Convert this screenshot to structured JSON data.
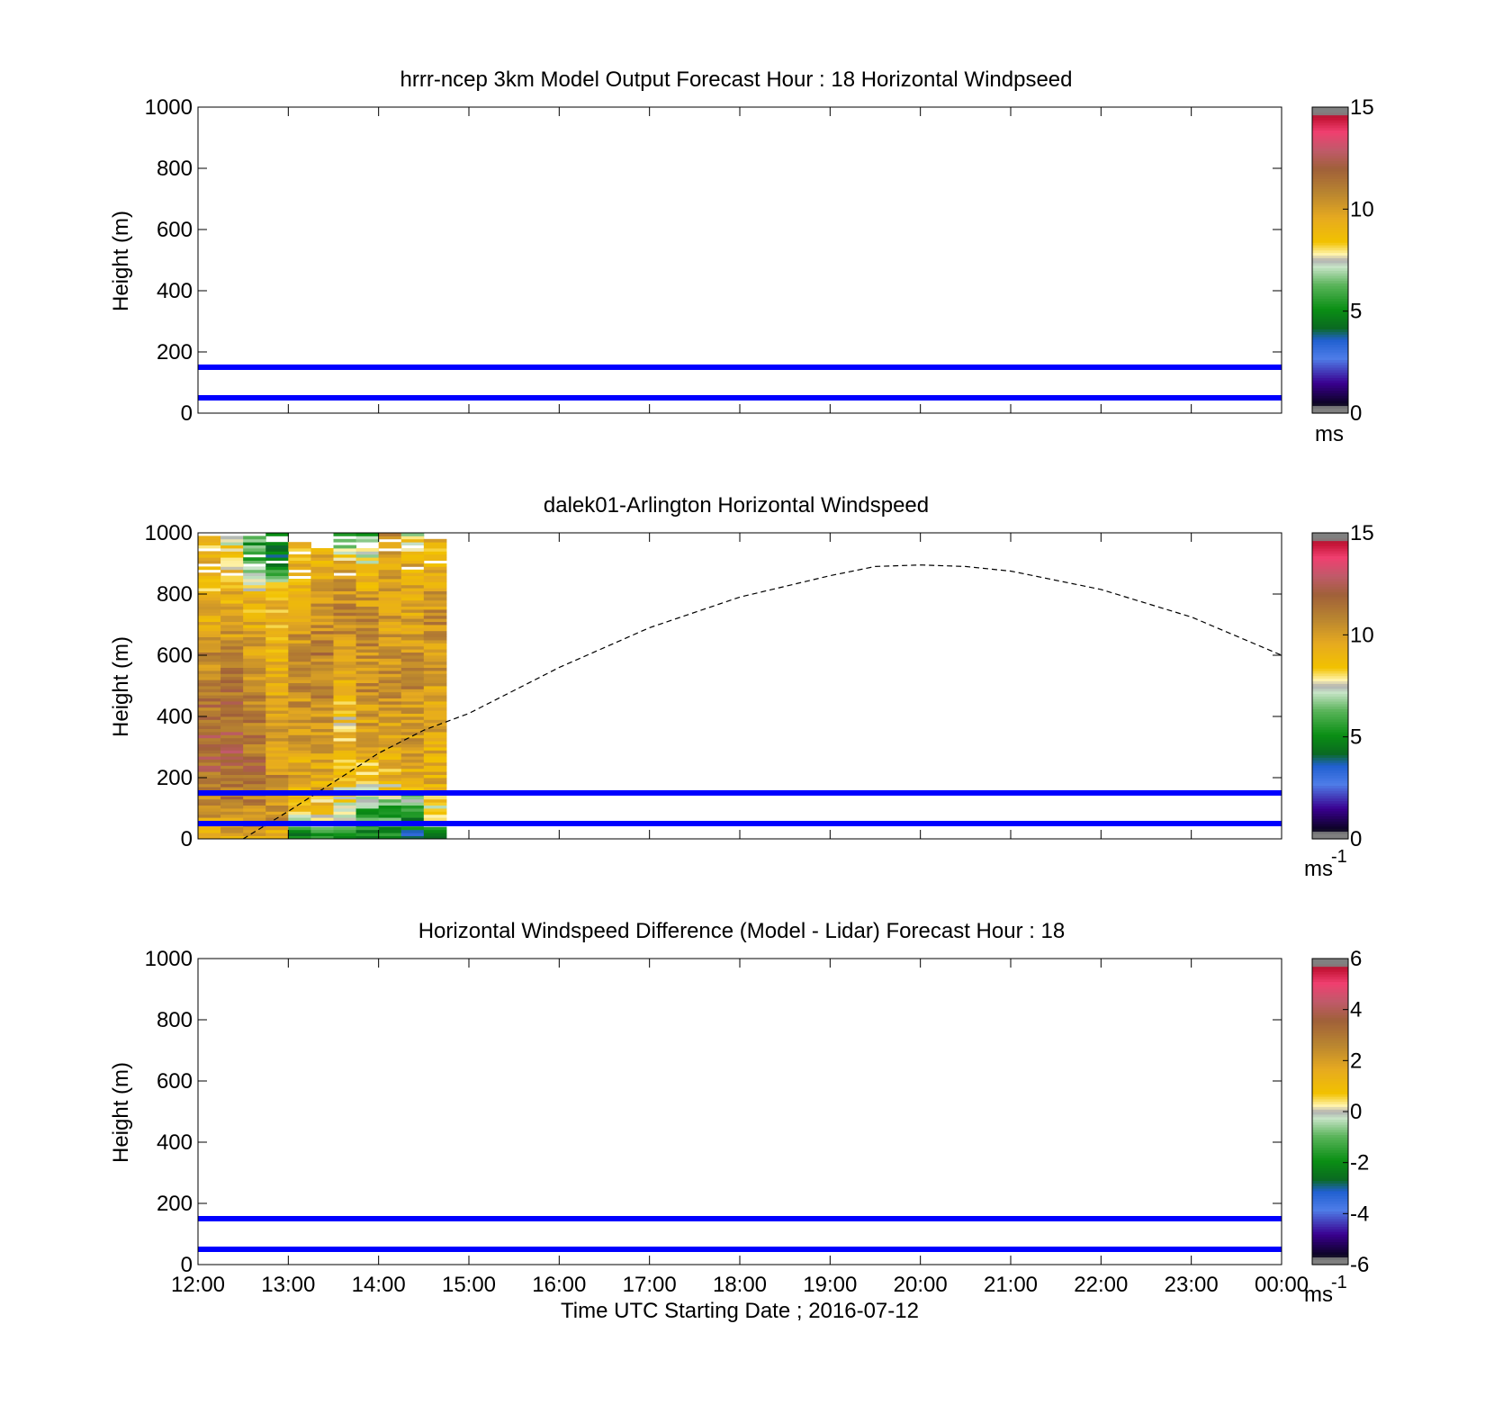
{
  "figure": {
    "x_tick_labels": [
      "12:00",
      "13:00",
      "14:00",
      "15:00",
      "16:00",
      "17:00",
      "18:00",
      "19:00",
      "20:00",
      "21:00",
      "22:00",
      "23:00",
      "00:00"
    ],
    "xlabel": "Time UTC  Starting Date ; 2016-07-12",
    "reference_line_color": "#0000ff",
    "dashed_line_color": "#000000"
  },
  "panels": [
    {
      "title": "hrrr-ncep 3km Model Output   Forecast Hour : 18 Horizontal Windpseed",
      "ylabel": "Height (m)",
      "y_tick_labels": [
        "0",
        "200",
        "400",
        "600",
        "800",
        "1000"
      ],
      "colorbar": {
        "tick_labels": [
          "0",
          "5",
          "10",
          "15"
        ],
        "unit": "ms",
        "unit_sup": ""
      }
    },
    {
      "title": "dalek01-Arlington  Horizontal Windspeed",
      "ylabel": "Height (m)",
      "y_tick_labels": [
        "0",
        "200",
        "400",
        "600",
        "800",
        "1000"
      ],
      "colorbar": {
        "tick_labels": [
          "0",
          "5",
          "10",
          "15"
        ],
        "unit": "ms",
        "unit_sup": "-1"
      }
    },
    {
      "title": "Horizontal Windspeed Difference (Model - Lidar) Forecast Hour : 18",
      "ylabel": "Height (m)",
      "y_tick_labels": [
        "0",
        "200",
        "400",
        "600",
        "800",
        "1000"
      ],
      "colorbar": {
        "tick_labels": [
          "-6",
          "-4",
          "-2",
          "0",
          "2",
          "4",
          "6"
        ],
        "unit": "ms",
        "unit_sup": "-1"
      }
    }
  ],
  "chart_data": [
    {
      "type": "heatmap",
      "title": "hrrr-ncep 3km Model Output   Forecast Hour : 18 Horizontal Windpseed",
      "ylabel": "Height (m)",
      "x_range": [
        "12:00",
        "00:00"
      ],
      "ylim": [
        0,
        1000
      ],
      "reference_lines_y": [
        50,
        150
      ],
      "colorbar_range": [
        0,
        15
      ],
      "colorbar_unit": "ms",
      "cells": []
    },
    {
      "type": "heatmap",
      "title": "dalek01-Arlington  Horizontal Windspeed",
      "ylabel": "Height (m)",
      "x_range": [
        "12:00",
        "00:00"
      ],
      "ylim": [
        0,
        1000
      ],
      "reference_lines_y": [
        50,
        150
      ],
      "colorbar_range": [
        0,
        15
      ],
      "colorbar_unit": "ms-1",
      "time_columns_h": [
        12.0,
        12.25,
        12.5,
        12.75,
        13.0,
        13.25,
        13.5,
        13.75,
        14.0,
        14.25,
        14.5
      ],
      "column_top_m": [
        1000,
        1000,
        1000,
        1000,
        970,
        950,
        1000,
        1000,
        1000,
        1000,
        980
      ],
      "speed_profile_by_height": {
        "heights_m": [
          10,
          50,
          100,
          150,
          200,
          300,
          400,
          500,
          600,
          700,
          800,
          900,
          1000
        ],
        "columns": [
          [
            9.5,
            9.8,
            10.5,
            11.0,
            11.5,
            11.8,
            11.5,
            11.0,
            10.5,
            9.5,
            9.0,
            9.0,
            8.5
          ],
          [
            9.8,
            10.0,
            11.0,
            11.5,
            11.8,
            12.0,
            11.8,
            11.2,
            10.5,
            9.8,
            9.2,
            8.5,
            7.5
          ],
          [
            9.8,
            10.2,
            10.8,
            11.2,
            11.5,
            11.2,
            11.0,
            10.5,
            10.0,
            9.5,
            8.8,
            6.5,
            5.5
          ],
          [
            9.5,
            10.0,
            10.5,
            10.8,
            10.5,
            10.0,
            9.8,
            9.5,
            9.5,
            9.2,
            8.8,
            5.0,
            4.5
          ],
          [
            5.0,
            7.5,
            9.0,
            9.5,
            9.5,
            9.8,
            10.2,
            10.5,
            10.5,
            10.0,
            9.5,
            9.0,
            9.0
          ],
          [
            5.0,
            7.0,
            8.5,
            9.2,
            9.5,
            10.0,
            10.5,
            10.8,
            11.0,
            10.5,
            10.0,
            9.5,
            9.5
          ],
          [
            4.5,
            6.5,
            7.5,
            8.0,
            8.5,
            9.0,
            8.5,
            9.5,
            10.0,
            10.5,
            10.5,
            9.5,
            5.0
          ],
          [
            5.0,
            5.5,
            6.0,
            7.5,
            8.5,
            9.5,
            10.0,
            10.5,
            10.5,
            10.5,
            10.0,
            8.0,
            6.0
          ],
          [
            5.5,
            5.5,
            6.0,
            7.5,
            9.0,
            9.5,
            10.0,
            10.5,
            10.5,
            10.0,
            10.0,
            9.5,
            11.0
          ],
          [
            4.0,
            5.0,
            6.0,
            7.0,
            9.5,
            10.0,
            10.2,
            10.5,
            10.2,
            10.0,
            9.5,
            9.5,
            7.5
          ],
          [
            5.0,
            6.5,
            8.0,
            9.0,
            9.5,
            9.5,
            9.8,
            10.0,
            10.2,
            10.5,
            10.2,
            9.0,
            9.0
          ]
        ]
      },
      "dashed_curve": {
        "x_h": [
          12.5,
          13.0,
          13.5,
          14.0,
          14.5,
          15.0,
          16.0,
          17.0,
          18.0,
          19.0,
          19.5,
          20.0,
          20.5,
          21.0,
          22.0,
          23.0,
          24.0
        ],
        "y_m": [
          0,
          90,
          185,
          280,
          355,
          410,
          560,
          690,
          790,
          860,
          890,
          895,
          890,
          875,
          815,
          725,
          600
        ]
      }
    },
    {
      "type": "heatmap",
      "title": "Horizontal Windspeed Difference (Model - Lidar) Forecast Hour : 18",
      "ylabel": "Height (m)",
      "x_range": [
        "12:00",
        "00:00"
      ],
      "ylim": [
        0,
        1000
      ],
      "reference_lines_y": [
        50,
        150
      ],
      "colorbar_range": [
        -6,
        6
      ],
      "colorbar_unit": "ms-1",
      "cells": []
    }
  ]
}
